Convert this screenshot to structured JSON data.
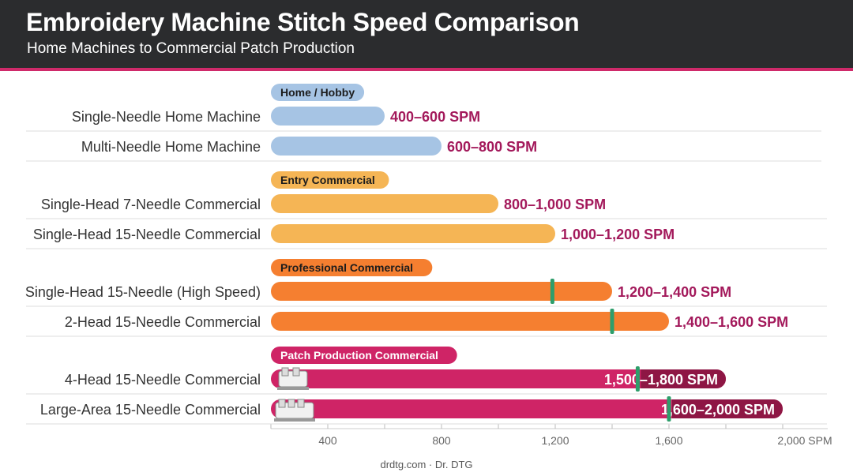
{
  "header": {
    "title": "Embroidery Machine Stitch Speed Comparison",
    "subtitle": "Home Machines to Commercial Patch Production"
  },
  "footer": {
    "credit": "drdtg.com · Dr. DTG"
  },
  "colors": {
    "header_bg": "#2b2c2e",
    "accent": "#cf2a6a",
    "label_value": "#a3195b",
    "marker": "#2e9e6b",
    "dark_band": "#8e1644"
  },
  "chart_data": {
    "type": "bar",
    "orientation": "horizontal",
    "xlim": [
      200,
      2000
    ],
    "x_ticks": [
      {
        "value": 400,
        "label": "400"
      },
      {
        "value": 800,
        "label": "800"
      },
      {
        "value": 1200,
        "label": "1,200"
      },
      {
        "value": 1600,
        "label": "1,600"
      },
      {
        "value": 2000,
        "label": "2,000 SPM"
      }
    ],
    "groups": [
      {
        "label": "Home / Hobby",
        "color": "#a6c4e4",
        "bars": [
          {
            "category": "Single-Needle Home Machine",
            "min": 400,
            "max": 600,
            "label": "400–600 SPM"
          },
          {
            "category": "Multi-Needle Home Machine",
            "min": 600,
            "max": 800,
            "label": "600–800 SPM"
          }
        ]
      },
      {
        "label": "Entry Commercial",
        "color": "#f5b555",
        "bars": [
          {
            "category": "Single-Head 7-Needle Commercial",
            "min": 800,
            "max": 1000,
            "label": "800–1,000 SPM"
          },
          {
            "category": "Single-Head 15-Needle Commercial",
            "min": 1000,
            "max": 1200,
            "label": "1,000–1,200 SPM"
          }
        ]
      },
      {
        "label": "Professional Commercial",
        "color": "#f57f30",
        "bars": [
          {
            "category": "Single-Head 15-Needle (High Speed)",
            "min": 1200,
            "max": 1400,
            "label": "1,200–1,400 SPM",
            "marker": 1190
          },
          {
            "category": "2-Head 15-Needle Commercial",
            "min": 1400,
            "max": 1600,
            "label": "1,400–1,600 SPM",
            "marker": 1400
          }
        ]
      },
      {
        "label": "Patch Production Commercial",
        "color": "#cf2466",
        "bars": [
          {
            "category": "4-Head 15-Needle Commercial",
            "min": 1500,
            "max": 1800,
            "label": "1,500–1,800 SPM",
            "marker": 1490,
            "icon": "multi-head-machine-icon"
          },
          {
            "category": "Large-Area 15-Needle Commercial",
            "min": 1600,
            "max": 2000,
            "label": "1,600–2,000 SPM",
            "marker": 1600,
            "icon": "large-area-machine-icon"
          }
        ]
      }
    ]
  }
}
